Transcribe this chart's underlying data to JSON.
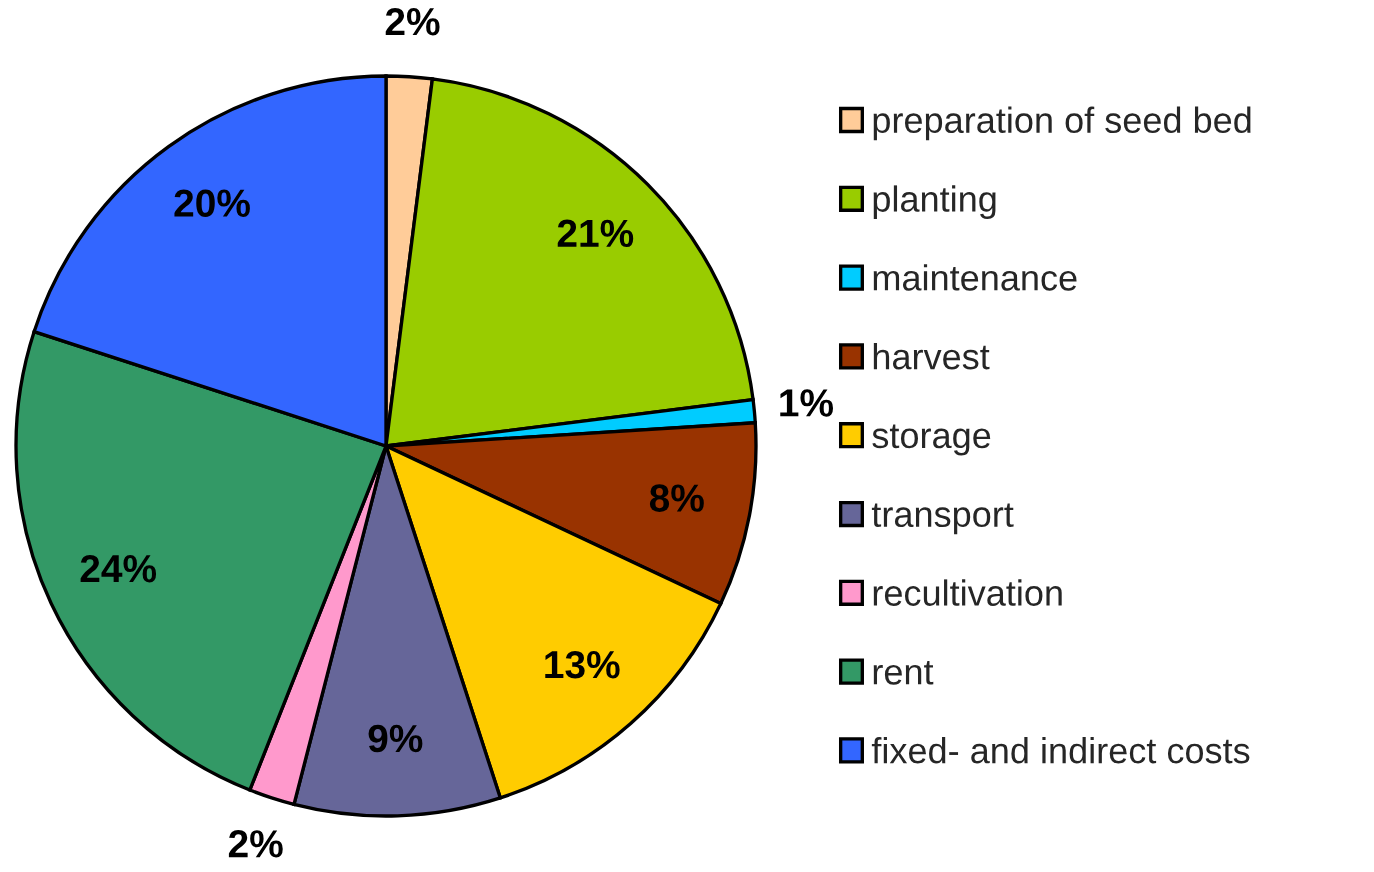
{
  "chart_data": {
    "type": "pie",
    "categories": [
      "preparation of seed bed",
      "planting",
      "maintenance",
      "harvest",
      "storage",
      "transport",
      "recultivation",
      "rent",
      "fixed- and indirect costs"
    ],
    "values": [
      2,
      21,
      1,
      8,
      13,
      9,
      2,
      24,
      20
    ],
    "colors": [
      "#ffcc99",
      "#99cc00",
      "#00ccff",
      "#993300",
      "#ffcc00",
      "#666699",
      "#ff99cc",
      "#339966",
      "#3366ff"
    ],
    "value_labels": [
      "2%",
      "21%",
      "1%",
      "8%",
      "13%",
      "9%",
      "2%",
      "24%",
      "20%"
    ],
    "legend": "right"
  }
}
